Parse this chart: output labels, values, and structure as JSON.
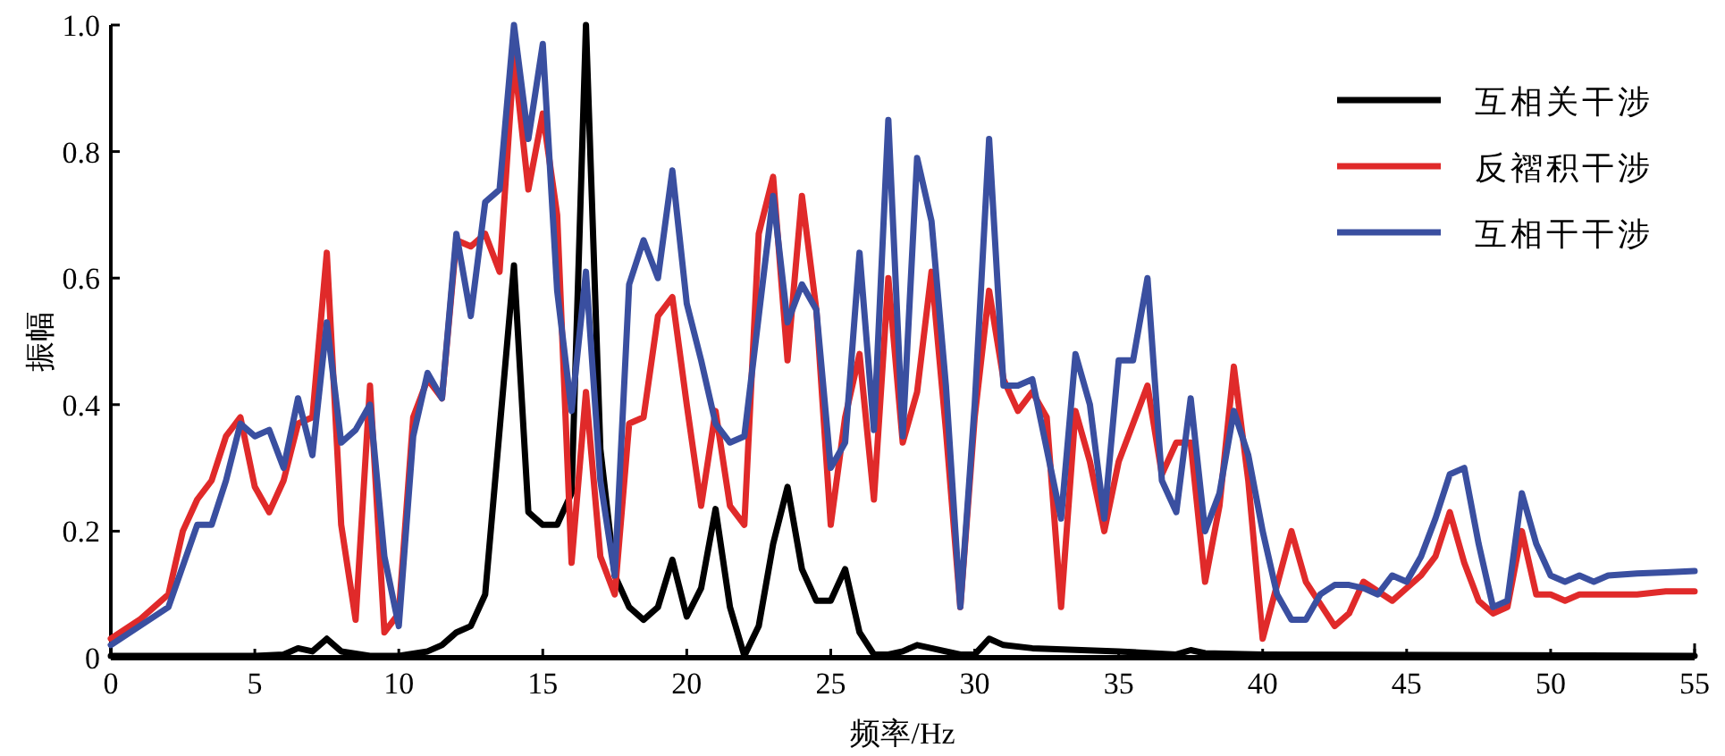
{
  "chart_data": {
    "type": "line",
    "xlabel": "频率/Hz",
    "ylabel": "振幅",
    "xlim": [
      0,
      55
    ],
    "ylim": [
      0,
      1
    ],
    "xticks": [
      0,
      5,
      10,
      15,
      20,
      25,
      30,
      35,
      40,
      45,
      50,
      55
    ],
    "yticks": [
      0,
      0.2,
      0.4,
      0.6,
      0.8,
      {
        "value": 1,
        "label": "1.0"
      }
    ],
    "legend": "top right",
    "series": [
      {
        "name": "互相关干涉",
        "color": "#000000",
        "x": [
          0,
          5,
          6,
          6.5,
          7,
          7.5,
          8,
          9,
          10,
          11,
          11.5,
          12,
          12.5,
          13,
          14,
          14.5,
          15,
          15.5,
          16,
          16.5,
          17,
          17.5,
          18,
          18.5,
          19,
          19.5,
          20,
          20.5,
          21,
          21.5,
          22,
          22.5,
          23,
          23.5,
          24,
          24.5,
          25,
          25.5,
          26,
          26.5,
          27,
          27.5,
          28,
          28.5,
          29.5,
          30,
          30.5,
          31,
          32,
          35,
          37,
          37.5,
          38,
          40,
          55
        ],
        "values": [
          0.003,
          0.003,
          0.005,
          0.015,
          0.01,
          0.03,
          0.01,
          0.003,
          0.003,
          0.01,
          0.02,
          0.04,
          0.05,
          0.1,
          0.62,
          0.23,
          0.21,
          0.21,
          0.26,
          1.0,
          0.33,
          0.13,
          0.08,
          0.06,
          0.08,
          0.155,
          0.065,
          0.11,
          0.235,
          0.08,
          0.003,
          0.05,
          0.18,
          0.27,
          0.14,
          0.09,
          0.09,
          0.14,
          0.04,
          0.005,
          0.005,
          0.01,
          0.02,
          0.015,
          0.005,
          0.005,
          0.03,
          0.02,
          0.015,
          0.01,
          0.005,
          0.012,
          0.007,
          0.005,
          0.003
        ]
      },
      {
        "name": "反褶积干涉",
        "color": "#e02a2a",
        "x": [
          0,
          1,
          2,
          2.5,
          3,
          3.5,
          4,
          4.5,
          5,
          5.5,
          6,
          6.5,
          7,
          7.5,
          8,
          8.5,
          9,
          9.5,
          10,
          10.5,
          11,
          11.5,
          12,
          12.5,
          13,
          13.5,
          14,
          14.5,
          15,
          15.5,
          16,
          16.5,
          17,
          17.5,
          18,
          18.5,
          19,
          19.5,
          20,
          20.5,
          21,
          21.5,
          22,
          22.5,
          23,
          23.5,
          24,
          24.5,
          25,
          25.5,
          26,
          26.5,
          27,
          27.5,
          28,
          28.5,
          29,
          29.5,
          30,
          30.5,
          31,
          31.5,
          32,
          32.5,
          33,
          33.5,
          34,
          34.5,
          35,
          35.5,
          36,
          36.5,
          37,
          37.5,
          38,
          38.5,
          39,
          39.5,
          40,
          41,
          41.5,
          42.5,
          43,
          43.5,
          44.5,
          45.5,
          46,
          46.5,
          47,
          47.5,
          48,
          48.5,
          49,
          49.5,
          50,
          50.5,
          51,
          52,
          53,
          54,
          55
        ],
        "values": [
          0.03,
          0.06,
          0.1,
          0.2,
          0.25,
          0.28,
          0.35,
          0.38,
          0.27,
          0.23,
          0.28,
          0.37,
          0.38,
          0.64,
          0.21,
          0.06,
          0.43,
          0.04,
          0.07,
          0.38,
          0.44,
          0.41,
          0.66,
          0.65,
          0.67,
          0.61,
          0.95,
          0.74,
          0.86,
          0.7,
          0.15,
          0.42,
          0.16,
          0.1,
          0.37,
          0.38,
          0.54,
          0.57,
          0.4,
          0.24,
          0.39,
          0.24,
          0.21,
          0.67,
          0.76,
          0.47,
          0.73,
          0.55,
          0.21,
          0.38,
          0.48,
          0.25,
          0.6,
          0.34,
          0.42,
          0.61,
          0.36,
          0.08,
          0.38,
          0.58,
          0.44,
          0.39,
          0.42,
          0.38,
          0.08,
          0.39,
          0.31,
          0.2,
          0.31,
          0.37,
          0.43,
          0.29,
          0.34,
          0.34,
          0.12,
          0.24,
          0.46,
          0.28,
          0.03,
          0.2,
          0.12,
          0.05,
          0.07,
          0.12,
          0.09,
          0.13,
          0.16,
          0.23,
          0.15,
          0.09,
          0.07,
          0.08,
          0.2,
          0.1,
          0.1,
          0.09,
          0.1,
          0.1,
          0.1,
          0.105,
          0.105
        ]
      },
      {
        "name": "互相干干涉",
        "color": "#3a4fa0",
        "x": [
          0,
          1,
          2,
          3,
          3.5,
          4,
          4.5,
          5,
          5.5,
          6,
          6.5,
          7,
          7.5,
          8,
          8.5,
          9,
          9.5,
          10,
          10.5,
          11,
          11.5,
          12,
          12.5,
          13,
          13.5,
          14,
          14.5,
          15,
          15.5,
          16,
          16.5,
          17,
          17.5,
          18,
          18.5,
          19,
          19.5,
          20,
          20.5,
          21,
          21.5,
          22,
          22.5,
          23,
          23.5,
          24,
          24.5,
          25,
          25.5,
          26,
          26.5,
          27,
          27.5,
          28,
          28.5,
          29,
          29.5,
          30,
          30.5,
          31,
          31.5,
          32,
          32.5,
          33,
          33.5,
          34,
          34.5,
          35,
          35.5,
          36,
          36.5,
          37,
          37.5,
          38,
          38.5,
          39,
          39.5,
          40,
          40.5,
          41,
          41.5,
          42,
          42.5,
          43,
          43.5,
          44,
          44.5,
          45,
          45.5,
          46,
          46.5,
          47,
          47.5,
          48,
          48.5,
          49,
          49.5,
          50,
          50.5,
          51,
          51.5,
          52,
          53,
          54,
          55
        ],
        "values": [
          0.02,
          0.05,
          0.08,
          0.21,
          0.21,
          0.28,
          0.37,
          0.35,
          0.36,
          0.3,
          0.41,
          0.32,
          0.53,
          0.34,
          0.36,
          0.4,
          0.16,
          0.05,
          0.35,
          0.45,
          0.41,
          0.67,
          0.54,
          0.72,
          0.74,
          1.0,
          0.82,
          0.97,
          0.58,
          0.39,
          0.61,
          0.28,
          0.13,
          0.59,
          0.66,
          0.6,
          0.77,
          0.56,
          0.47,
          0.37,
          0.34,
          0.35,
          0.54,
          0.73,
          0.53,
          0.59,
          0.55,
          0.3,
          0.34,
          0.64,
          0.36,
          0.85,
          0.35,
          0.79,
          0.69,
          0.43,
          0.08,
          0.4,
          0.82,
          0.43,
          0.43,
          0.44,
          0.33,
          0.22,
          0.48,
          0.4,
          0.22,
          0.47,
          0.47,
          0.6,
          0.28,
          0.23,
          0.41,
          0.2,
          0.26,
          0.39,
          0.32,
          0.2,
          0.1,
          0.06,
          0.06,
          0.1,
          0.115,
          0.115,
          0.11,
          0.1,
          0.13,
          0.12,
          0.16,
          0.22,
          0.29,
          0.3,
          0.18,
          0.08,
          0.09,
          0.26,
          0.18,
          0.13,
          0.12,
          0.13,
          0.12,
          0.13,
          0.133,
          0.135,
          0.137
        ]
      }
    ]
  }
}
